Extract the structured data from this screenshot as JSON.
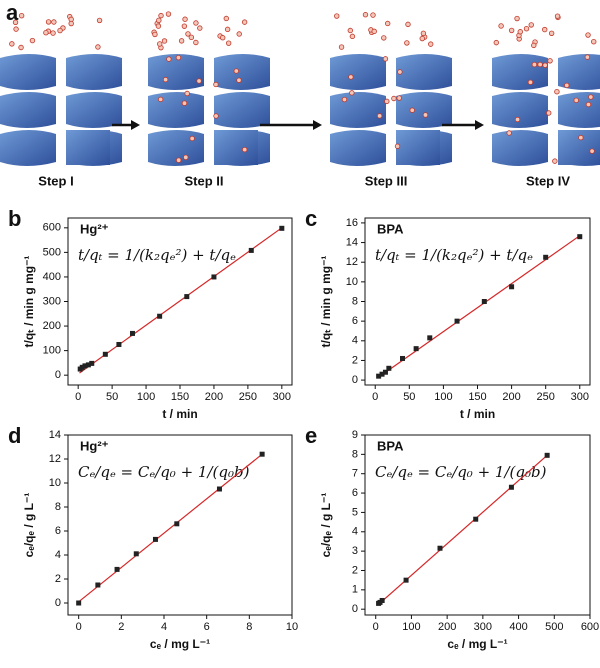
{
  "panel_a": {
    "label": "a",
    "steps": [
      "Step I",
      "Step II",
      "Step III",
      "Step IV"
    ]
  },
  "chart_data": [
    {
      "type": "scatter",
      "panel": "b",
      "annotation": "Hg²⁺",
      "equation": "t/qₜ = 1/(k₂qₑ²) + t/qₑ",
      "x_label": "t / min",
      "y_label": "t/qₜ / min g mg⁻¹",
      "x": [
        3,
        6,
        10,
        15,
        20,
        40,
        60,
        80,
        120,
        160,
        200,
        255,
        300
      ],
      "values": [
        25,
        32,
        38,
        42,
        48,
        85,
        125,
        170,
        240,
        320,
        400,
        508,
        598
      ],
      "color": "#222222",
      "fit": {
        "color": "#d62728",
        "x": [
          2,
          300
        ],
        "y": [
          9,
          600
        ]
      },
      "xlim": [
        -15,
        315
      ],
      "xticks": [
        0,
        50,
        100,
        150,
        200,
        250,
        300
      ],
      "ylim": [
        -40,
        640
      ],
      "yticks": [
        0,
        100,
        200,
        300,
        400,
        500,
        600
      ]
    },
    {
      "type": "scatter",
      "panel": "c",
      "annotation": "BPA",
      "equation": "t/qₜ = 1/(k₂qₑ²) + t/qₑ",
      "x_label": "t / min",
      "y_label": "t/qₜ / min g mg⁻¹",
      "x": [
        5,
        10,
        15,
        20,
        40,
        60,
        80,
        120,
        160,
        200,
        250,
        300
      ],
      "values": [
        0.4,
        0.6,
        0.8,
        1.2,
        2.2,
        3.2,
        4.3,
        6.0,
        8.0,
        9.5,
        12.5,
        14.6
      ],
      "color": "#222222",
      "fit": {
        "color": "#d62728",
        "x": [
          3,
          300
        ],
        "y": [
          0.2,
          14.7
        ]
      },
      "xlim": [
        -15,
        315
      ],
      "xticks": [
        0,
        50,
        100,
        150,
        200,
        250,
        300
      ],
      "ylim": [
        -0.5,
        16.5
      ],
      "yticks": [
        0,
        2,
        4,
        6,
        8,
        10,
        12,
        14,
        16
      ]
    },
    {
      "type": "scatter",
      "panel": "d",
      "annotation": "Hg²⁺",
      "equation": "Cₑ/qₑ = Cₑ/q₀ + 1/(q₀b)",
      "x_label": "cₑ / mg L⁻¹",
      "y_label": "cₑ/qₑ / g L⁻¹",
      "x": [
        0,
        0.9,
        1.8,
        2.7,
        3.6,
        4.6,
        6.6,
        8.6
      ],
      "values": [
        0,
        1.5,
        2.8,
        4.1,
        5.3,
        6.6,
        9.5,
        12.4
      ],
      "color": "#222222",
      "fit": {
        "color": "#d62728",
        "x": [
          0,
          8.6
        ],
        "y": [
          0.1,
          12.4
        ]
      },
      "xlim": [
        -0.5,
        10
      ],
      "xticks": [
        0,
        2,
        4,
        6,
        8,
        10
      ],
      "ylim": [
        -1,
        14
      ],
      "yticks": [
        0,
        2,
        4,
        6,
        8,
        10,
        12,
        14
      ]
    },
    {
      "type": "scatter",
      "panel": "e",
      "annotation": "BPA",
      "equation": "Cₑ/qₑ = Cₑ/q₀ + 1/(q₀b)",
      "x_label": "cₑ / mg L⁻¹",
      "y_label": "cₑ/qₑ / g L⁻¹",
      "x": [
        8,
        12,
        18,
        85,
        180,
        280,
        380,
        480
      ],
      "values": [
        0.3,
        0.35,
        0.45,
        1.5,
        3.15,
        4.65,
        6.3,
        7.95
      ],
      "color": "#222222",
      "fit": {
        "color": "#d62728",
        "x": [
          5,
          480
        ],
        "y": [
          0.2,
          7.95
        ]
      },
      "xlim": [
        -30,
        600
      ],
      "xticks": [
        0,
        100,
        200,
        300,
        400,
        500,
        600
      ],
      "ylim": [
        -0.3,
        9
      ],
      "yticks": [
        0,
        1,
        2,
        3,
        4,
        5,
        6,
        7,
        8,
        9
      ]
    }
  ]
}
